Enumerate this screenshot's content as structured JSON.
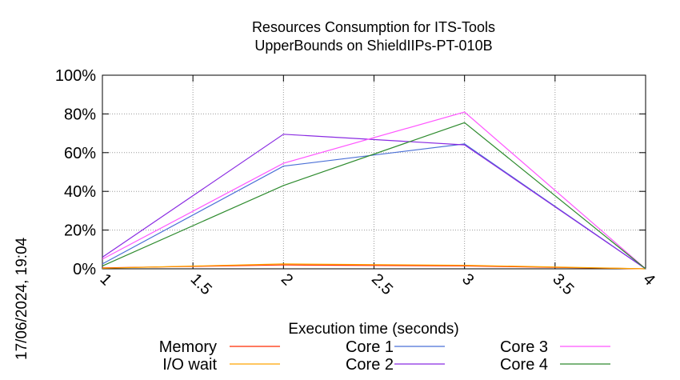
{
  "chart_data": {
    "type": "line",
    "title": [
      "Resources Consumption for ITS-Tools",
      "UpperBounds on ShieldIIPs-PT-010B"
    ],
    "xlabel": "Execution time (seconds)",
    "ylabel": "",
    "side_label": "17/06/2024, 19:04",
    "xlim": [
      1,
      4
    ],
    "ylim": [
      0,
      100
    ],
    "x_ticks": [
      "1",
      "1.5",
      "2",
      "2.5",
      "3",
      "3.5",
      "4"
    ],
    "y_ticks": [
      "0%",
      "20%",
      "40%",
      "60%",
      "80%",
      "100%"
    ],
    "grid": true,
    "legend_position": "bottom",
    "series": [
      {
        "name": "Memory",
        "color": "#ff2a00",
        "x": [
          1,
          2,
          3,
          4
        ],
        "y": [
          0.5,
          2,
          1.5,
          0
        ]
      },
      {
        "name": "I/O wait",
        "color": "#ffa500",
        "x": [
          1,
          2,
          3,
          4
        ],
        "y": [
          0.3,
          2.5,
          1.8,
          0
        ]
      },
      {
        "name": "Core 1",
        "color": "#4a6fd6",
        "x": [
          1,
          2,
          3,
          4
        ],
        "y": [
          2.5,
          53,
          64.5,
          0
        ]
      },
      {
        "name": "Core 2",
        "color": "#8a2be2",
        "x": [
          1,
          2,
          3,
          4
        ],
        "y": [
          6,
          69.5,
          64,
          0
        ]
      },
      {
        "name": "Core 3",
        "color": "#ff55ff",
        "x": [
          1,
          2,
          3,
          4
        ],
        "y": [
          5,
          54.5,
          81,
          0
        ]
      },
      {
        "name": "Core 4",
        "color": "#2e8b2e",
        "x": [
          1,
          2,
          3,
          4
        ],
        "y": [
          1.5,
          43,
          75.5,
          0
        ]
      }
    ]
  }
}
